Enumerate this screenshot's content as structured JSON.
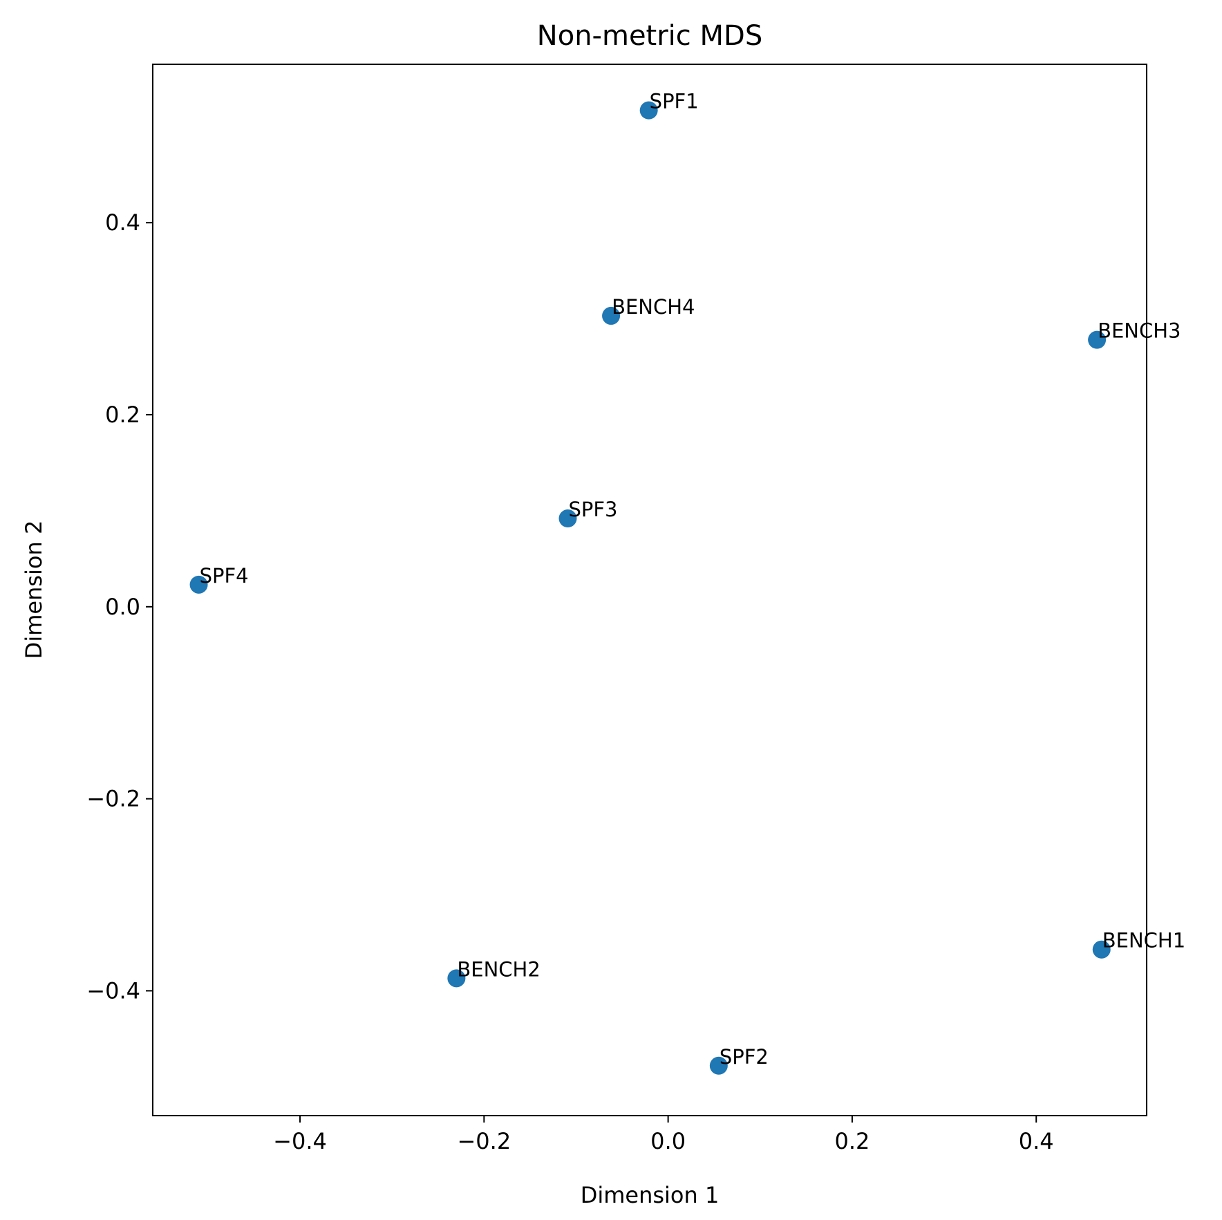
{
  "chart_data": {
    "type": "scatter",
    "title": "Non-metric MDS",
    "xlabel": "Dimension 1",
    "ylabel": "Dimension 2",
    "xlim": [
      -0.56,
      0.52
    ],
    "ylim": [
      -0.53,
      0.565
    ],
    "xticks": [
      -0.4,
      -0.2,
      0.0,
      0.2,
      0.4
    ],
    "xtick_labels": [
      "−0.4",
      "−0.2",
      "0.0",
      "0.2",
      "0.4"
    ],
    "yticks": [
      -0.4,
      -0.2,
      0.0,
      0.2,
      0.4
    ],
    "ytick_labels": [
      "−0.4",
      "−0.2",
      "0.0",
      "0.2",
      "0.4"
    ],
    "grid": false,
    "marker_color": "#1f77b4",
    "points": [
      {
        "label": "SPF1",
        "x": -0.021,
        "y": 0.517
      },
      {
        "label": "BENCH4",
        "x": -0.062,
        "y": 0.303
      },
      {
        "label": "BENCH3",
        "x": 0.466,
        "y": 0.278
      },
      {
        "label": "SPF3",
        "x": -0.109,
        "y": 0.092
      },
      {
        "label": "SPF4",
        "x": -0.51,
        "y": 0.023
      },
      {
        "label": "BENCH1",
        "x": 0.471,
        "y": -0.357
      },
      {
        "label": "BENCH2",
        "x": -0.23,
        "y": -0.387
      },
      {
        "label": "SPF2",
        "x": 0.055,
        "y": -0.478
      }
    ]
  }
}
